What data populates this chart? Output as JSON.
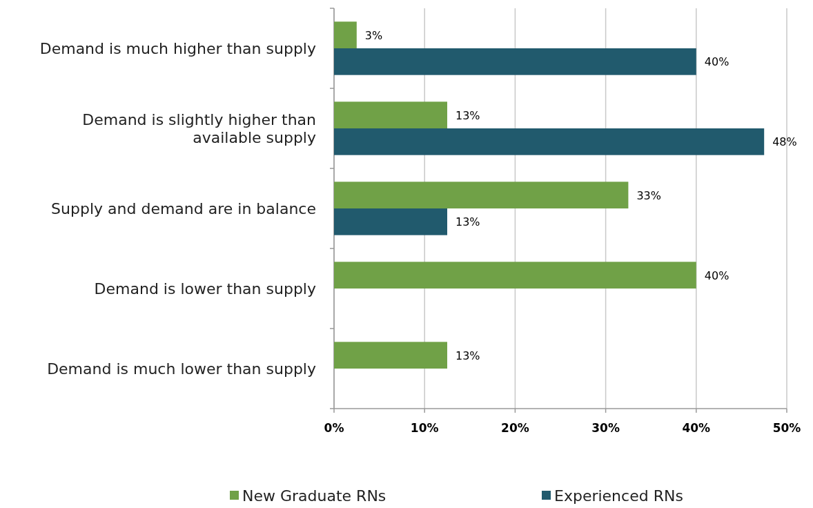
{
  "chart_data": {
    "type": "bar",
    "orientation": "horizontal",
    "categories": [
      "Demand is much higher than supply",
      "Demand is slightly higher than available supply",
      "Supply and demand are in balance",
      "Demand is lower than supply",
      "Demand is much lower than supply"
    ],
    "series": [
      {
        "name": "New Graduate RNs",
        "color": "#70a147",
        "values": [
          2.5,
          12.5,
          32.5,
          40,
          12.5
        ],
        "value_labels": [
          "3%",
          "13%",
          "33%",
          "40%",
          "13%"
        ]
      },
      {
        "name": "Experienced RNs",
        "color": "#215a6d",
        "values": [
          40,
          47.5,
          12.5,
          null,
          null
        ],
        "value_labels": [
          "40%",
          "48%",
          "13%",
          null,
          null
        ]
      }
    ],
    "xlim": [
      0,
      50
    ],
    "xticks": [
      {
        "value": 0,
        "label": "0%"
      },
      {
        "value": 10,
        "label": "10%"
      },
      {
        "value": 20,
        "label": "20%"
      },
      {
        "value": 30,
        "label": "30%"
      },
      {
        "value": 40,
        "label": "40%"
      },
      {
        "value": 50,
        "label": "50%"
      }
    ],
    "grid": "x",
    "legend": "bottom"
  }
}
